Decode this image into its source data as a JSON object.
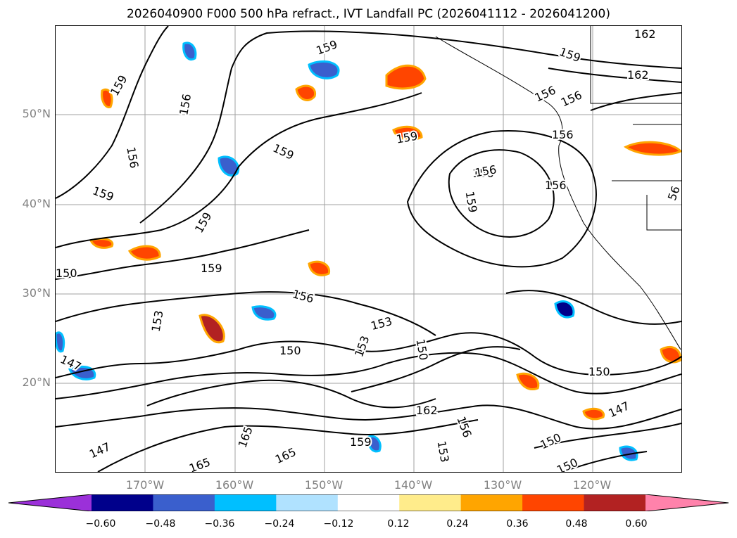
{
  "title": "2026040900 F000 500 hPa refract., IVT Landfall PC (2026041112 - 2026041200)",
  "map": {
    "lat_labels": [
      "50°N",
      "40°N",
      "30°N",
      "20°N"
    ],
    "lon_labels": [
      "170°W",
      "160°W",
      "150°W",
      "140°W",
      "130°W",
      "120°W"
    ],
    "gridline_color": "#a0a0a0",
    "contour_color": "#000000",
    "contour_labels": [
      {
        "text": "162"
      },
      {
        "text": "162"
      },
      {
        "text": "159"
      },
      {
        "text": "159"
      },
      {
        "text": "156"
      },
      {
        "text": "159"
      },
      {
        "text": "156"
      },
      {
        "text": "156"
      },
      {
        "text": "159"
      },
      {
        "text": "156"
      },
      {
        "text": "159"
      },
      {
        "text": "156"
      },
      {
        "text": "159"
      },
      {
        "text": "159"
      },
      {
        "text": "156"
      },
      {
        "text": "159"
      },
      {
        "text": "159"
      },
      {
        "text": "156"
      },
      {
        "text": "153"
      },
      {
        "text": "150"
      },
      {
        "text": "150"
      },
      {
        "text": "147"
      },
      {
        "text": "153"
      },
      {
        "text": "150"
      },
      {
        "text": "150"
      },
      {
        "text": "153"
      },
      {
        "text": "147"
      },
      {
        "text": "162"
      },
      {
        "text": "156"
      },
      {
        "text": "159"
      },
      {
        "text": "153"
      },
      {
        "text": "165"
      },
      {
        "text": "165"
      },
      {
        "text": "165"
      },
      {
        "text": "150"
      },
      {
        "text": "150"
      },
      {
        "text": "147"
      },
      {
        "text": "156"
      },
      {
        "text": "156"
      },
      {
        "text": "56"
      }
    ]
  },
  "colorbar": {
    "colors": [
      "#9b30d9",
      "#00008b",
      "#3a5fcd",
      "#00bfff",
      "#b0e2ff",
      "#ffffff",
      "#ffec8b",
      "#ffa500",
      "#ff4500",
      "#b22222",
      "#ff82ab"
    ],
    "ticks": [
      "−0.60",
      "−0.48",
      "−0.36",
      "−0.24",
      "−0.12",
      "0.12",
      "0.24",
      "0.36",
      "0.48",
      "0.60"
    ]
  }
}
